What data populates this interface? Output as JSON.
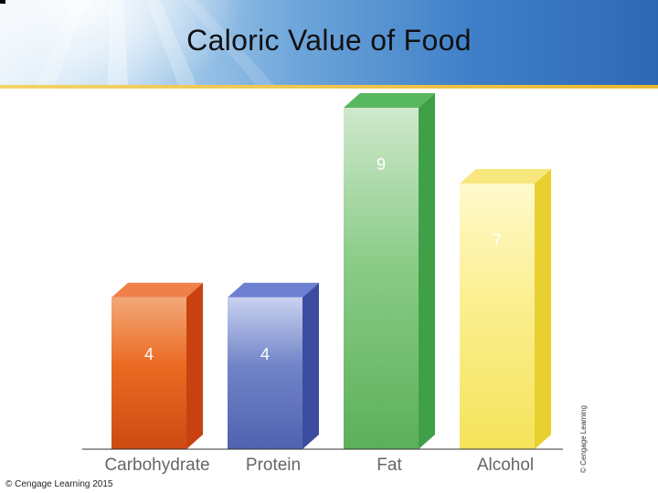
{
  "title": "Caloric Value of Food",
  "credit_bottom": "© Cengage Learning 2015",
  "credit_side": "© Cengage Learning",
  "chart_data": {
    "type": "bar",
    "title": "Caloric Value of Food",
    "categories": [
      "Carbohydrate",
      "Protein",
      "Fat",
      "Alcohol"
    ],
    "values": [
      4,
      4,
      9,
      7
    ],
    "data_labels": [
      "4",
      "4",
      "9",
      "7"
    ],
    "colors": [
      {
        "light": "#f3a878",
        "mid": "#ea6a22",
        "dark": "#cd4a12",
        "side": "#c8420f",
        "top": "#f0804a"
      },
      {
        "light": "#c9d1ef",
        "mid": "#7184c8",
        "dark": "#5062b0",
        "side": "#3c4ca0",
        "top": "#6d7fd1"
      },
      {
        "light": "#cfe8cc",
        "mid": "#8bcc88",
        "dark": "#5cb05a",
        "side": "#3fa048",
        "top": "#58b860"
      },
      {
        "light": "#fff9cc",
        "mid": "#fbef90",
        "dark": "#f5e35a",
        "side": "#e8d030",
        "top": "#f7e77c"
      }
    ],
    "xlabel": "",
    "ylabel": "",
    "ylim": [
      0,
      9
    ],
    "grid": false,
    "legend": "none"
  }
}
